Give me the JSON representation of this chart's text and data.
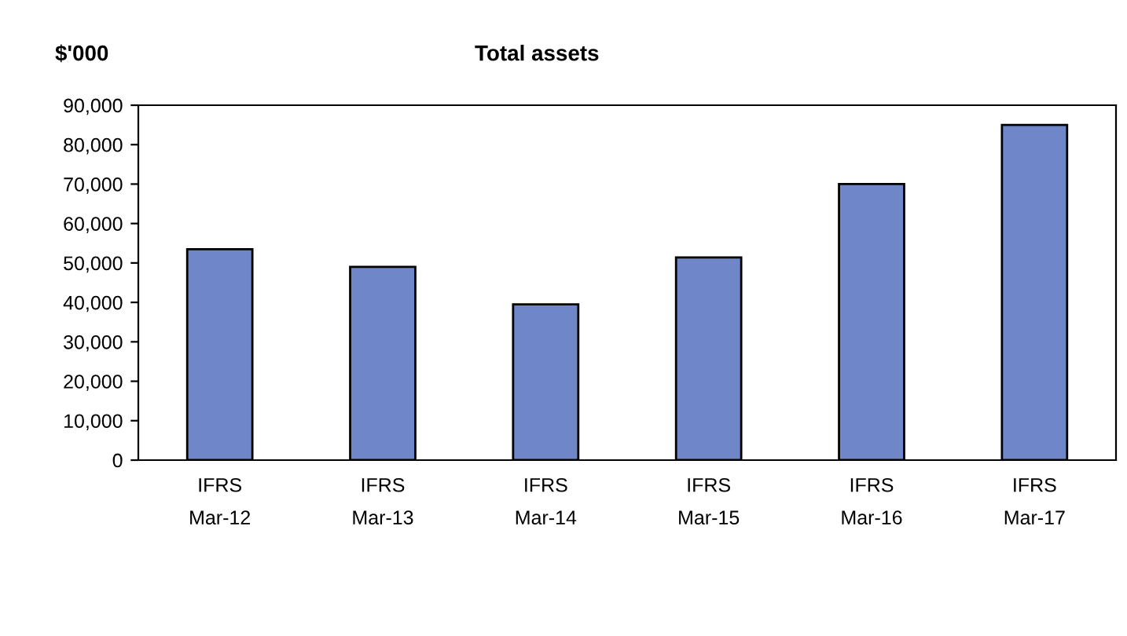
{
  "chart_data": {
    "type": "bar",
    "title": "Total assets",
    "ylabel": "$'000",
    "categories": [
      "IFRS\nMar-12",
      "IFRS\nMar-13",
      "IFRS\nMar-14",
      "IFRS\nMar-15",
      "IFRS\nMar-16",
      "IFRS\nMar-17"
    ],
    "values": [
      53500,
      49000,
      39500,
      51400,
      70000,
      85000
    ],
    "color": "#6f86c8",
    "ylim": [
      0,
      90000
    ],
    "yticks": [
      {
        "value": 0,
        "label": "0"
      },
      {
        "value": 10000,
        "label": "10,000"
      },
      {
        "value": 20000,
        "label": "20,000"
      },
      {
        "value": 30000,
        "label": "30,000"
      },
      {
        "value": 40000,
        "label": "40,000"
      },
      {
        "value": 50000,
        "label": "50,000"
      },
      {
        "value": 60000,
        "label": "60,000"
      },
      {
        "value": 70000,
        "label": "70,000"
      },
      {
        "value": 80000,
        "label": "80,000"
      },
      {
        "value": 90000,
        "label": "90,000"
      }
    ],
    "grid": false
  }
}
